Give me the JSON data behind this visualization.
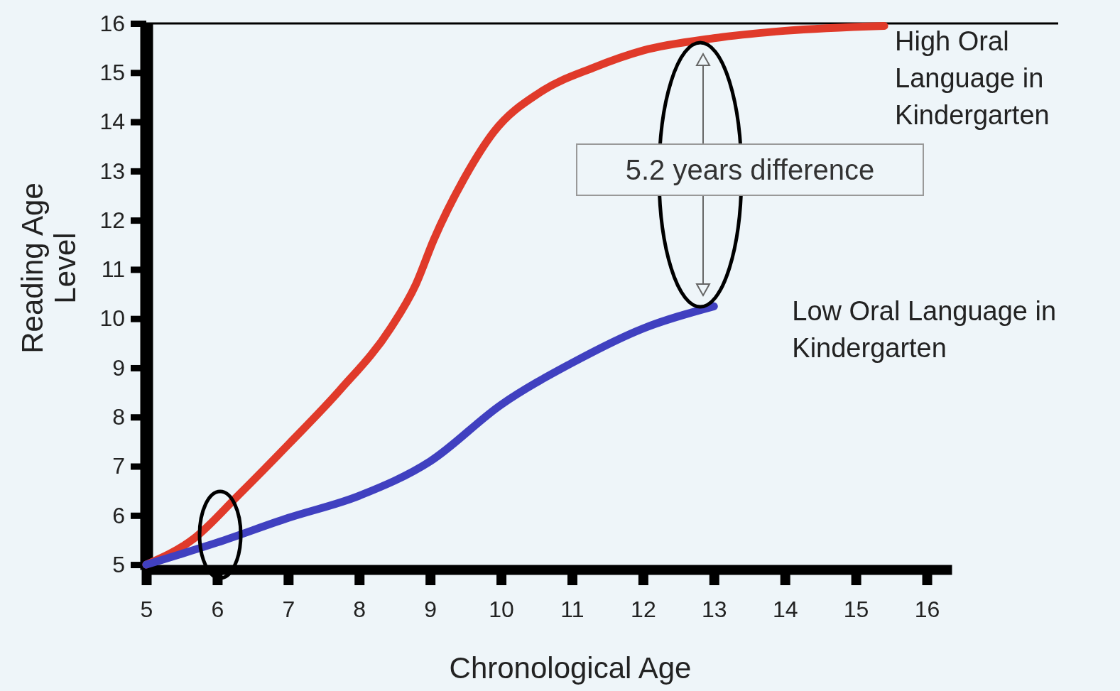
{
  "chart_data": {
    "type": "line",
    "xlabel": "Chronological Age",
    "ylabel": "Reading Age Level",
    "xlim": [
      5,
      16.35
    ],
    "ylim": [
      4.9,
      16
    ],
    "xticks": [
      5,
      6,
      7,
      8,
      9,
      10,
      11,
      12,
      13,
      14,
      15,
      16
    ],
    "yticks": [
      5,
      6,
      7,
      8,
      9,
      10,
      11,
      12,
      13,
      14,
      15,
      16
    ],
    "grid": false,
    "marker": "none",
    "line_style": "solid",
    "series": [
      {
        "name": "High Oral Language in Kindergarten",
        "color": "#e03a2a",
        "x": [
          5,
          5.67,
          6.29,
          7.02,
          7.73,
          8.44,
          8.8,
          9.05,
          9.5,
          9.9,
          10.55,
          11.3,
          12,
          13,
          14,
          15.4
        ],
        "values": [
          5,
          5.53,
          6.4,
          7.47,
          8.55,
          9.8,
          10.7,
          11.6,
          12.9,
          13.8,
          14.6,
          15.1,
          15.45,
          15.7,
          15.85,
          15.95
        ]
      },
      {
        "name": "Low Oral Language in Kindergarten",
        "color": "#4040c0",
        "x": [
          5,
          6,
          7,
          8,
          9,
          10,
          11,
          12,
          13
        ],
        "values": [
          5,
          5.45,
          5.95,
          6.4,
          7.1,
          8.25,
          9.1,
          9.8,
          10.25
        ]
      }
    ],
    "ref_lines": [
      {
        "axis": "y",
        "value": 16,
        "color": "#000000"
      }
    ],
    "annotations": [
      "5.2 years difference"
    ]
  }
}
